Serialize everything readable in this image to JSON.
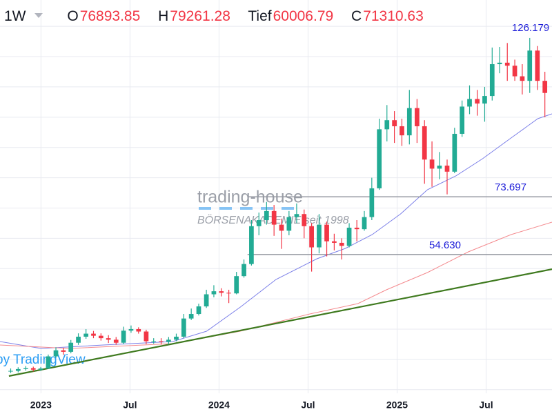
{
  "header": {
    "interval": "1W",
    "open_label": "O",
    "open": 76893.85,
    "high_label": "H",
    "high": 79261.28,
    "low_label": "Tief",
    "low": 60006.79,
    "close_label": "C",
    "close": 71310.63
  },
  "watermark": {
    "brand": "trading-house",
    "tagline": "BÖRSENAKADEMIE seit 1998",
    "attribution": "by TradingView"
  },
  "chart_data": {
    "type": "candlestick",
    "x": [
      2022.83,
      2022.872,
      2022.915,
      2022.957,
      2022.999,
      2023.041,
      2023.084,
      2023.126,
      2023.168,
      2023.21,
      2023.253,
      2023.295,
      2023.337,
      2023.379,
      2023.422,
      2023.464,
      2023.506,
      2023.548,
      2023.591,
      2023.633,
      2023.675,
      2023.717,
      2023.76,
      2023.802,
      2023.844,
      2023.886,
      2023.929,
      2023.971,
      2024.013,
      2024.055,
      2024.098,
      2024.14,
      2024.182,
      2024.224,
      2024.267,
      2024.309,
      2024.351,
      2024.393,
      2024.436,
      2024.478,
      2024.52,
      2024.562,
      2024.605,
      2024.647,
      2024.689,
      2024.731,
      2024.774,
      2024.816,
      2024.858,
      2024.9,
      2024.943,
      2024.985,
      2025.027,
      2025.069,
      2025.112,
      2025.154,
      2025.196,
      2025.238,
      2025.281,
      2025.323,
      2025.365,
      2025.407,
      2025.45,
      2025.492,
      2025.534,
      2025.576,
      2025.619,
      2025.661,
      2025.703,
      2025.745,
      2025.788,
      2025.83
    ],
    "open": [
      16000,
      16200,
      16800,
      17100,
      16600,
      17000,
      21000,
      23000,
      22500,
      25500,
      27500,
      28500,
      27800,
      27000,
      26500,
      25500,
      29500,
      30000,
      29200,
      26000,
      26000,
      25800,
      26500,
      27500,
      33500,
      35000,
      37500,
      41500,
      42500,
      42000,
      41800,
      47500,
      51500,
      64000,
      66000,
      69000,
      64500,
      62500,
      67000,
      68000,
      64000,
      57000,
      64500,
      59000,
      58500,
      57500,
      63500,
      63000,
      67000,
      76500,
      96000,
      99000,
      97000,
      94000,
      103000,
      97000,
      86000,
      83000,
      84000,
      82000,
      94500,
      103500,
      106000,
      104500,
      107000,
      117500,
      118000,
      117000,
      113500,
      112000,
      122000,
      112000
    ],
    "high": [
      17000,
      17400,
      17800,
      17600,
      17500,
      21600,
      24000,
      23800,
      26400,
      28600,
      30000,
      29400,
      28600,
      28000,
      27400,
      30800,
      31200,
      30600,
      29800,
      27000,
      27000,
      27400,
      28500,
      35000,
      36800,
      38400,
      43000,
      44500,
      43500,
      43000,
      48900,
      53000,
      66000,
      68500,
      72000,
      71000,
      66500,
      69000,
      71500,
      69500,
      65000,
      68000,
      65500,
      61500,
      60000,
      65000,
      66000,
      69000,
      80000,
      99500,
      104000,
      102000,
      99500,
      109000,
      106000,
      99000,
      92000,
      88500,
      86000,
      96500,
      105500,
      110500,
      109000,
      110000,
      123000,
      123200,
      124500,
      119000,
      117500,
      126179,
      123500,
      115000
    ],
    "low": [
      15500,
      15700,
      16300,
      16000,
      16200,
      16800,
      20500,
      21500,
      22000,
      24800,
      26800,
      27000,
      26200,
      25400,
      24800,
      25000,
      28800,
      28500,
      25000,
      25200,
      24900,
      25000,
      26000,
      27000,
      33000,
      34500,
      37000,
      40500,
      40800,
      38600,
      41500,
      47000,
      51000,
      61000,
      64500,
      60800,
      56500,
      61000,
      65000,
      60000,
      49000,
      55000,
      54000,
      56000,
      53000,
      57000,
      59000,
      62500,
      66000,
      76000,
      92000,
      91500,
      90500,
      91000,
      91500,
      78000,
      77000,
      79500,
      74500,
      81500,
      93500,
      101000,
      100500,
      98500,
      105500,
      114500,
      112000,
      112000,
      107500,
      108000,
      109000,
      100000
    ],
    "close": [
      16200,
      16800,
      17100,
      16600,
      17000,
      21000,
      23000,
      22500,
      25500,
      27500,
      28500,
      27800,
      27000,
      26500,
      25500,
      29500,
      30000,
      29200,
      26000,
      26000,
      25800,
      26500,
      27500,
      33500,
      35000,
      37500,
      41500,
      42500,
      42000,
      41800,
      47500,
      51500,
      64000,
      66000,
      69000,
      64500,
      62500,
      67000,
      68000,
      64000,
      57000,
      64500,
      59000,
      58500,
      57500,
      63500,
      63000,
      67000,
      76500,
      96000,
      99000,
      97000,
      94000,
      103000,
      97000,
      86000,
      83000,
      84000,
      82000,
      94500,
      103500,
      106000,
      104500,
      107000,
      117500,
      118000,
      117000,
      113500,
      112000,
      122000,
      112000,
      108000
    ],
    "up_color": "#22ab94",
    "down_color": "#f23645",
    "xlim": [
      2022.77,
      2025.87
    ],
    "xticks": [
      {
        "value": 2023,
        "label": "2023"
      },
      {
        "value": 2023.5,
        "label": "Jul"
      },
      {
        "value": 2024,
        "label": "2024"
      },
      {
        "value": 2024.5,
        "label": "Jul"
      },
      {
        "value": 2025,
        "label": "2025"
      },
      {
        "value": 2025.5,
        "label": "Jul"
      }
    ],
    "ylim": [
      8800,
      138700
    ],
    "yticks": [
      10000,
      20000,
      30000,
      40000,
      50000,
      60000,
      70000,
      80000,
      90000,
      100000,
      110000,
      120000,
      130000
    ],
    "grid": true,
    "lines": [
      {
        "color": "#7b7fe8",
        "x": [
          2022.77,
          2023.0,
          2023.35,
          2023.74,
          2023.93,
          2024.12,
          2024.32,
          2024.55,
          2024.71,
          2024.86,
          2025.02,
          2025.17,
          2025.33,
          2025.48,
          2025.64,
          2025.79,
          2025.87
        ],
        "values": [
          25900,
          23610,
          24750,
          25890,
          29310,
          37290,
          46400,
          53240,
          56660,
          61220,
          68050,
          76030,
          80590,
          86290,
          93120,
          99500,
          101100
        ]
      },
      {
        "color": "#f48a8e",
        "x": [
          2022.77,
          2023.16,
          2023.74,
          2024.12,
          2024.51,
          2024.78,
          2024.94,
          2025.17,
          2025.4,
          2025.64,
          2025.87
        ],
        "values": [
          24750,
          23610,
          25210,
          29310,
          35010,
          38430,
          42990,
          48680,
          55520,
          61220,
          65320
        ]
      },
      {
        "color": "#3f7a1f",
        "x": [
          2022.82,
          2025.87
        ],
        "values": [
          14500,
          49800
        ]
      }
    ],
    "levels": [
      {
        "value": 73697,
        "label": "73.697",
        "from": 2024.16
      },
      {
        "value": 54630,
        "label": "54.630",
        "from": 2024.16
      }
    ],
    "annotations": [
      {
        "x": 2025.75,
        "value": 126179,
        "label": "126.179"
      }
    ]
  }
}
